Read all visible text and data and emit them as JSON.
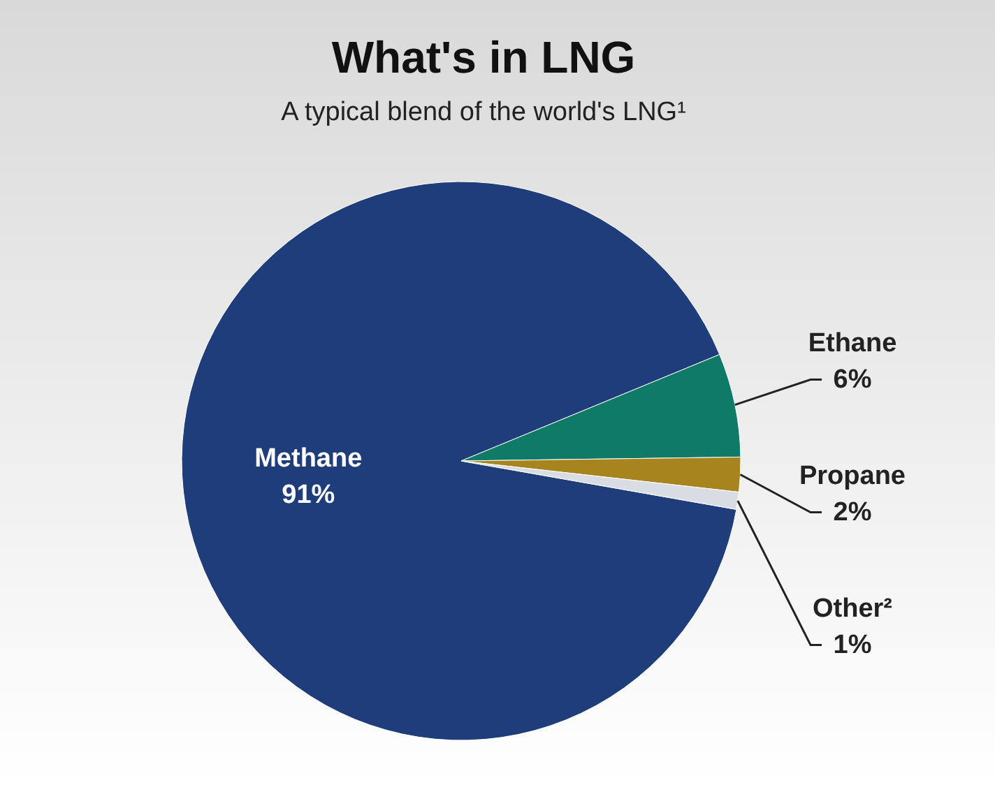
{
  "chart_data": {
    "type": "pie",
    "title": "What's in LNG",
    "subtitle": "A typical blend of the world's LNG¹",
    "categories": [
      "Methane",
      "Ethane",
      "Propane",
      "Other²"
    ],
    "values": [
      91,
      6,
      2,
      1
    ],
    "colors": [
      "#1f3d7a",
      "#0f7a68",
      "#a8841e",
      "#d8dde4"
    ],
    "value_labels": [
      "91%",
      "6%",
      "2%",
      "1%"
    ]
  }
}
